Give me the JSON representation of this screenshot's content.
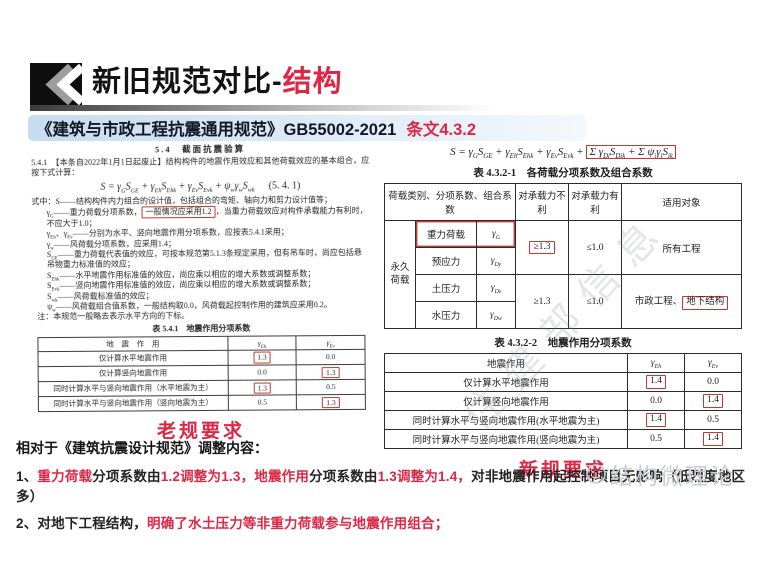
{
  "header": {
    "title_black": "新旧规范对比-",
    "title_red": "结构"
  },
  "subtitle": {
    "code": "《建筑与市政工程抗震通用规范》GB55002-2021",
    "clause": "条文4.3.2"
  },
  "old_doc": {
    "section_heading": "5.4　截面抗震验算",
    "clause_text": "5.4.1　【本条自2022年1月1日起废止】结构构件的地震作用效应和其他荷载效应的基本组合，应按下式计算：",
    "formula": [
      {
        "t": "S = γ",
        "s": "G"
      },
      {
        "t": "S",
        "s": "GE"
      },
      {
        "t": " + γ",
        "s": "Eh"
      },
      {
        "t": "S",
        "s": "Ehk"
      },
      {
        "t": " + γ",
        "s": "Ev"
      },
      {
        "t": "S",
        "s": "Evk"
      },
      {
        "t": " + ψ",
        "s": "w"
      },
      {
        "t": "γ",
        "s": "w"
      },
      {
        "t": "S",
        "s": "wk"
      }
    ],
    "formula_number": "(5. 4. 1)",
    "definitions": [
      [
        {
          "t": "式中：S——结构构件内力组合的设计值，包括组合的弯矩、轴向力和剪力设计值等；"
        }
      ],
      [
        {
          "t": "γ",
          "s": "G"
        },
        {
          "t": "——重力荷载分项系数，"
        },
        {
          "t": "一般情况应采用1.2",
          "box": true
        },
        {
          "t": "，当重力荷载效应对构件承载能力有利时，不应大于1.0；"
        }
      ],
      [
        {
          "t": "γ",
          "s": "Eh"
        },
        {
          "t": "、γ",
          "s": "Ev"
        },
        {
          "t": "——分别为水平、竖向地震作用分项系数，应按表5.4.1采用；"
        }
      ],
      [
        {
          "t": "γ",
          "s": "w"
        },
        {
          "t": "——风荷载分项系数，应采用1.4；"
        }
      ],
      [
        {
          "t": "S",
          "s": "GE"
        },
        {
          "t": "——重力荷载代表值的效应，可按本规范第5.1.3条规定采用，但有吊车时，尚应包括悬吊物重力标准值的效应；"
        }
      ],
      [
        {
          "t": "S",
          "s": "Ehk"
        },
        {
          "t": "——水平地震作用标准值的效应，尚应乘以相应的增大系数或调整系数；"
        }
      ],
      [
        {
          "t": "S",
          "s": "Evk"
        },
        {
          "t": "——竖向地震作用标准值的效应，尚应乘以相应的增大系数或调整系数；"
        }
      ],
      [
        {
          "t": "S",
          "s": "wk"
        },
        {
          "t": "——风荷载标准值的效应；"
        }
      ],
      [
        {
          "t": "ψ",
          "s": "w"
        },
        {
          "t": "——风荷载组合值系数，一般结构取0.0，风荷载起控制作用的建筑应采用0.2。"
        }
      ],
      [
        {
          "t": "注：本规范一般略去表示水平方向的下标。"
        }
      ]
    ],
    "table_title": "表 5.4.1　地震作用分项系数",
    "table": {
      "col_action": "地　震　作　用",
      "col_eh": [
        {
          "t": "γ",
          "s": "Eh"
        }
      ],
      "col_ev": [
        {
          "t": "γ",
          "s": "Ev"
        }
      ],
      "rows": [
        {
          "label": "仅计算水平地震作用",
          "eh": "1.3",
          "ev": "0.0",
          "eh_box": true,
          "ev_box": false
        },
        {
          "label": "仅计算竖向地震作用",
          "eh": "0.0",
          "ev": "1.3",
          "eh_box": false,
          "ev_box": true
        },
        {
          "label": "同时计算水平与竖向地震作用（水平地震为主）",
          "eh": "1.3",
          "ev": "0.5",
          "eh_box": true,
          "ev_box": false
        },
        {
          "label": "同时计算水平与竖向地震作用（竖向地震为主）",
          "eh": "0.5",
          "ev": "1.3",
          "eh_box": false,
          "ev_box": true
        }
      ]
    },
    "caption": "老规要求"
  },
  "new_doc": {
    "formula_plain": [
      {
        "t": "S = γ",
        "s": "G"
      },
      {
        "t": "S",
        "s": "GE"
      },
      {
        "t": " + γ",
        "s": "Eh"
      },
      {
        "t": "S",
        "s": "Ehk"
      },
      {
        "t": " + γ",
        "s": "Ev"
      },
      {
        "t": "S",
        "s": "Evk"
      },
      {
        "t": " + "
      }
    ],
    "formula_boxed": [
      {
        "t": "Σ γ",
        "s": "Di"
      },
      {
        "t": "S",
        "s": "Dik"
      },
      {
        "t": " + Σ ψ",
        "s": "i"
      },
      {
        "t": "γ",
        "s": "i"
      },
      {
        "t": "S",
        "s": "ik"
      }
    ],
    "table1_title": "表 4.3.2-1　各荷载分项系数及组合系数",
    "table1": {
      "h_load": "荷载类别、分项系数、组合系数",
      "h_unfav": "对承载力不利",
      "h_fav": "对承载力有利",
      "h_scope": "适用对象",
      "group": "永久荷载",
      "rows": [
        {
          "name": "重力荷载",
          "sym": [
            {
              "t": "γ",
              "s": "G"
            }
          ]
        },
        {
          "name": "预应力",
          "sym": [
            {
              "t": "γ",
              "s": "Dy"
            }
          ]
        },
        {
          "name": "土压力",
          "sym": [
            {
              "t": "γ",
              "s": "Ds"
            }
          ]
        },
        {
          "name": "水压力",
          "sym": [
            {
              "t": "γ",
              "s": "Dw"
            }
          ]
        }
      ],
      "unfav1": "≥1.3",
      "fav1": "≤1.0",
      "scope1": "所有工程",
      "unfav2": "≥1.3",
      "fav2": "≤1.0",
      "scope2_plain": "市政工程、",
      "scope2_boxed": "地下结构"
    },
    "table2_title": "表 4.3.2-2　地震作用分项系数",
    "table2": {
      "col_action": "地震作用",
      "col_eh": [
        {
          "t": "γ",
          "s": "Eh"
        }
      ],
      "col_ev": [
        {
          "t": "γ",
          "s": "Ev"
        }
      ],
      "rows": [
        {
          "label": "仅计算水平地震作用",
          "eh": "1.4",
          "ev": "0.0",
          "eh_box": true,
          "ev_box": false
        },
        {
          "label": "仅计算竖向地震作用",
          "eh": "0.0",
          "ev": "1.4",
          "eh_box": false,
          "ev_box": true
        },
        {
          "label": "同时计算水平与竖向地震作用(水平地震为主)",
          "eh": "1.4",
          "ev": "0.5",
          "eh_box": true,
          "ev_box": false
        },
        {
          "label": "同时计算水平与竖向地震作用(竖向地震为主)",
          "eh": "0.5",
          "ev": "1.4",
          "eh_box": false,
          "ev_box": true
        }
      ]
    },
    "caption": "新规要求"
  },
  "notes": {
    "intro": "相对于《建筑抗震设计规范》调整内容：",
    "items": [
      [
        {
          "text": "1、",
          "red": false
        },
        {
          "text": "重力荷载",
          "red": true
        },
        {
          "text": "分项系数由",
          "red": false
        },
        {
          "text": "1.2调整为1.3，",
          "red": true
        },
        {
          "text": "地震作用",
          "red": true
        },
        {
          "text": "分项系数由",
          "red": false
        },
        {
          "text": "1.3调整为1.4，",
          "red": true
        },
        {
          "text": "对非地震作用起控制项目无影响（低烈度地区多）",
          "red": false
        }
      ],
      [
        {
          "text": "2、对地下工程结构，",
          "red": false
        },
        {
          "text": "明确了水土压力等非重力荷载参与地震作用组合；",
          "red": true
        }
      ]
    ]
  },
  "watermarks": {
    "diagonal": "住建部信息",
    "brand": "结构微理论"
  },
  "colors": {
    "accent_red": "#dd2745",
    "annotation_red": "#c4392c",
    "subtitle_bg": "#c7dcf0"
  }
}
